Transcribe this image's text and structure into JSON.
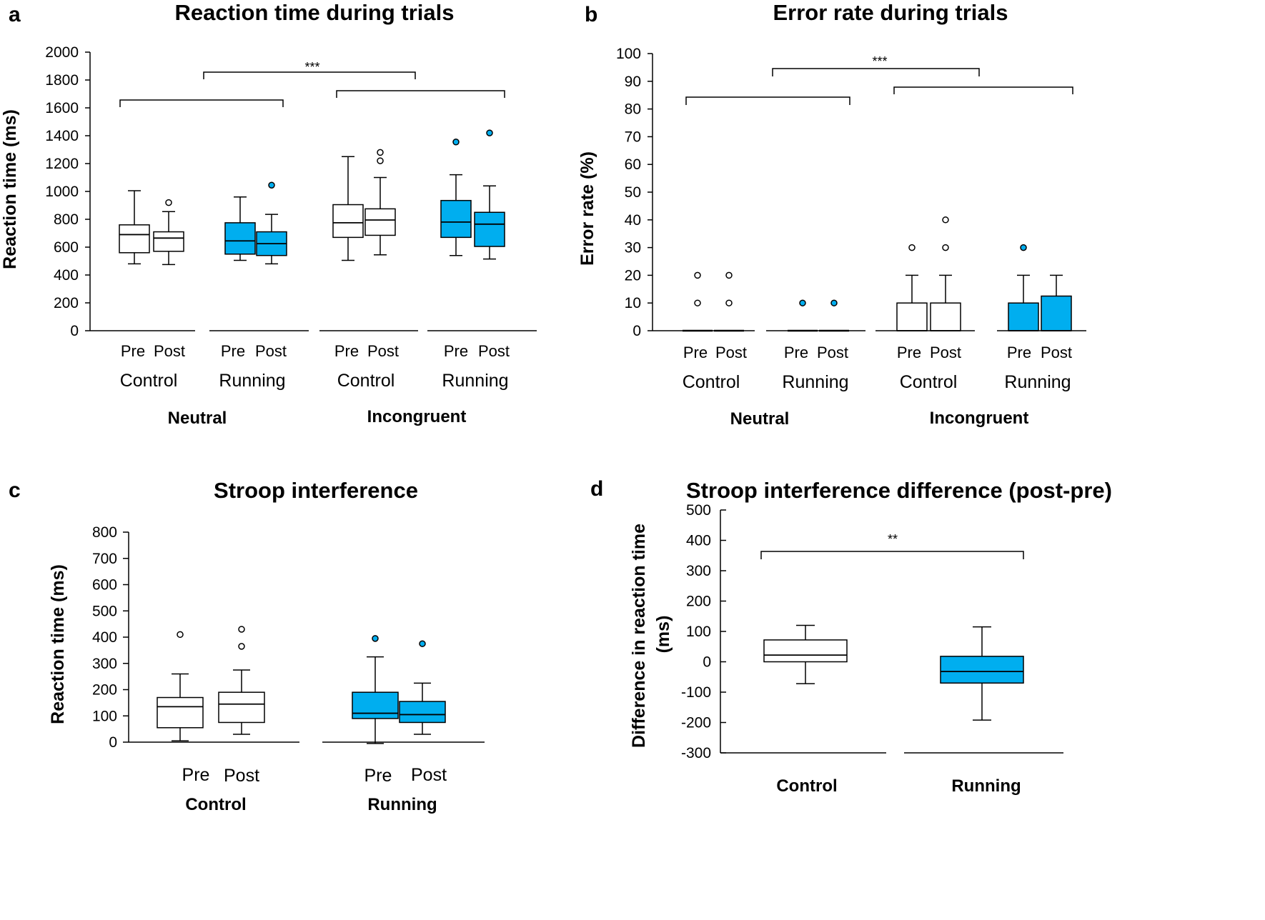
{
  "colors": {
    "running": "#00AEEF",
    "control": "#FFFFFF",
    "line": "#000000"
  },
  "chart_data": [
    {
      "id": "a",
      "type": "box",
      "panel_letter": "a",
      "title": "Reaction time during trials",
      "ylabel": "Reaction time (ms)",
      "ylim": [
        0,
        2000
      ],
      "yticks": [
        0,
        200,
        400,
        600,
        800,
        1000,
        1200,
        1400,
        1600,
        1800,
        2000
      ],
      "conditions": [
        {
          "label": "Neutral",
          "groups": [
            {
              "label": "Control",
              "color": "control",
              "boxes": [
                {
                  "label": "Pre",
                  "min": 480,
                  "q1": 560,
                  "median": 690,
                  "q3": 760,
                  "max": 1005,
                  "outliers": []
                },
                {
                  "label": "Post",
                  "min": 475,
                  "q1": 570,
                  "median": 665,
                  "q3": 710,
                  "max": 855,
                  "outliers": [
                    920
                  ]
                }
              ]
            },
            {
              "label": "Running",
              "color": "running",
              "boxes": [
                {
                  "label": "Pre",
                  "min": 505,
                  "q1": 550,
                  "median": 645,
                  "q3": 775,
                  "max": 960,
                  "outliers": []
                },
                {
                  "label": "Post",
                  "min": 480,
                  "q1": 540,
                  "median": 625,
                  "q3": 710,
                  "max": 835,
                  "outliers": [
                    1045
                  ]
                }
              ]
            }
          ]
        },
        {
          "label": "Incongruent",
          "groups": [
            {
              "label": "Control",
              "color": "control",
              "boxes": [
                {
                  "label": "Pre",
                  "min": 505,
                  "q1": 670,
                  "median": 775,
                  "q3": 905,
                  "max": 1250,
                  "outliers": []
                },
                {
                  "label": "Post",
                  "min": 545,
                  "q1": 685,
                  "median": 795,
                  "q3": 875,
                  "max": 1100,
                  "outliers": [
                    1220,
                    1280
                  ]
                }
              ]
            },
            {
              "label": "Running",
              "color": "running",
              "boxes": [
                {
                  "label": "Pre",
                  "min": 540,
                  "q1": 670,
                  "median": 780,
                  "q3": 935,
                  "max": 1120,
                  "outliers": [
                    1355
                  ]
                },
                {
                  "label": "Post",
                  "min": 515,
                  "q1": 605,
                  "median": 765,
                  "q3": 850,
                  "max": 1040,
                  "outliers": [
                    1420
                  ]
                }
              ]
            }
          ]
        }
      ],
      "significance": [
        {
          "label": "***",
          "between": [
            "Neutral",
            "Incongruent"
          ]
        }
      ]
    },
    {
      "id": "b",
      "type": "box",
      "panel_letter": "b",
      "title": "Error rate during trials",
      "ylabel": "Error rate (%)",
      "ylim": [
        0,
        100
      ],
      "yticks": [
        0,
        10,
        20,
        30,
        40,
        50,
        60,
        70,
        80,
        90,
        100
      ],
      "conditions": [
        {
          "label": "Neutral",
          "groups": [
            {
              "label": "Control",
              "color": "control",
              "boxes": [
                {
                  "label": "Pre",
                  "min": 0,
                  "q1": 0,
                  "median": 0,
                  "q3": 0,
                  "max": 0,
                  "outliers": [
                    10,
                    20
                  ]
                },
                {
                  "label": "Post",
                  "min": 0,
                  "q1": 0,
                  "median": 0,
                  "q3": 0,
                  "max": 0,
                  "outliers": [
                    10,
                    20
                  ]
                }
              ]
            },
            {
              "label": "Running",
              "color": "running",
              "boxes": [
                {
                  "label": "Pre",
                  "min": 0,
                  "q1": 0,
                  "median": 0,
                  "q3": 0,
                  "max": 0,
                  "outliers": [
                    10
                  ]
                },
                {
                  "label": "Post",
                  "min": 0,
                  "q1": 0,
                  "median": 0,
                  "q3": 0,
                  "max": 0,
                  "outliers": [
                    10
                  ]
                }
              ]
            }
          ]
        },
        {
          "label": "Incongruent",
          "groups": [
            {
              "label": "Control",
              "color": "control",
              "boxes": [
                {
                  "label": "Pre",
                  "min": 0,
                  "q1": 0,
                  "median": 0,
                  "q3": 10,
                  "max": 20,
                  "outliers": [
                    30
                  ]
                },
                {
                  "label": "Post",
                  "min": 0,
                  "q1": 0,
                  "median": 0,
                  "q3": 10,
                  "max": 20,
                  "outliers": [
                    30,
                    40
                  ]
                }
              ]
            },
            {
              "label": "Running",
              "color": "running",
              "boxes": [
                {
                  "label": "Pre",
                  "min": 0,
                  "q1": 0,
                  "median": 0,
                  "q3": 10,
                  "max": 20,
                  "outliers": [
                    30
                  ]
                },
                {
                  "label": "Post",
                  "min": 0,
                  "q1": 0,
                  "median": 0,
                  "q3": 12.5,
                  "max": 20,
                  "outliers": []
                }
              ]
            }
          ]
        }
      ],
      "significance": [
        {
          "label": "***",
          "between": [
            "Neutral",
            "Incongruent"
          ]
        }
      ]
    },
    {
      "id": "c",
      "type": "box",
      "panel_letter": "c",
      "title": "Stroop interference",
      "ylabel": "Reaction time (ms)",
      "ylim": [
        0,
        800
      ],
      "yticks": [
        0,
        100,
        200,
        300,
        400,
        500,
        600,
        700,
        800
      ],
      "conditions": [
        {
          "label": "",
          "groups": [
            {
              "label": "Control",
              "color": "control",
              "boxes": [
                {
                  "label": "Pre",
                  "min": 5,
                  "q1": 55,
                  "median": 135,
                  "q3": 170,
                  "max": 260,
                  "outliers": [
                    410
                  ]
                },
                {
                  "label": "Post",
                  "min": 30,
                  "q1": 75,
                  "median": 145,
                  "q3": 190,
                  "max": 275,
                  "outliers": [
                    365,
                    430
                  ]
                }
              ]
            },
            {
              "label": "Running",
              "color": "running",
              "boxes": [
                {
                  "label": "Pre",
                  "min": -5,
                  "q1": 90,
                  "median": 110,
                  "q3": 190,
                  "max": 325,
                  "outliers": [
                    395
                  ]
                },
                {
                  "label": "Post",
                  "min": 30,
                  "q1": 75,
                  "median": 105,
                  "q3": 155,
                  "max": 225,
                  "outliers": [
                    375
                  ]
                }
              ]
            }
          ]
        }
      ],
      "significance": []
    },
    {
      "id": "d",
      "type": "box",
      "panel_letter": "d",
      "title": "Stroop interference difference (post-pre)",
      "ylabel": "Difference in reaction time (ms)",
      "ylabel_lines": [
        "Difference in reaction time",
        "(ms)"
      ],
      "ylim": [
        -300,
        500
      ],
      "yticks": [
        -300,
        -200,
        -100,
        0,
        100,
        200,
        300,
        400,
        500
      ],
      "conditions": [
        {
          "label": "",
          "groups": [
            {
              "label": "Control",
              "color": "control",
              "boxes": [
                {
                  "label": "",
                  "min": -72,
                  "q1": 0,
                  "median": 22,
                  "q3": 72,
                  "max": 120,
                  "outliers": []
                }
              ]
            },
            {
              "label": "Running",
              "color": "running",
              "boxes": [
                {
                  "label": "",
                  "min": -192,
                  "q1": -70,
                  "median": -32,
                  "q3": 18,
                  "max": 115,
                  "outliers": []
                }
              ]
            }
          ]
        }
      ],
      "significance": [
        {
          "label": "**",
          "between": [
            "Control",
            "Running"
          ]
        }
      ]
    }
  ]
}
